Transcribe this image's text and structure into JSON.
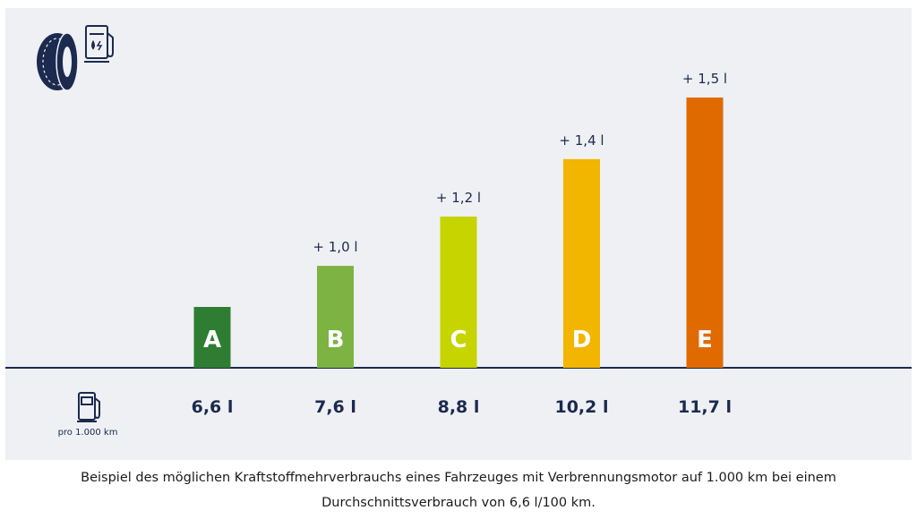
{
  "chart_data": {
    "type": "bar",
    "categories": [
      "A",
      "B",
      "C",
      "D",
      "E"
    ],
    "values": [
      6.6,
      7.6,
      8.8,
      10.2,
      11.7
    ],
    "value_labels": [
      "6,6 l",
      "7,6 l",
      "8,8 l",
      "10,2 l",
      "11,7 l"
    ],
    "delta_labels": [
      "",
      "+ 1,0 l",
      "+ 1,2 l",
      "+ 1,4 l",
      "+ 1,5 l"
    ],
    "colors": [
      "#2e7d32",
      "#7cb342",
      "#c6d400",
      "#f2b500",
      "#e06a00"
    ],
    "ylim": [
      0,
      11.7
    ],
    "grid": false,
    "legend": "none",
    "unit_note": "pro 1.000 km",
    "icons": {
      "header": [
        "tire-icon",
        "charging-pump-icon"
      ],
      "row": "fuel-pump-icon"
    }
  },
  "caption": {
    "line1": "Beispiel des möglichen Kraftstoffmehrverbrauchs eines Fahrzeuges mit Verbrennungsmotor auf 1.000 km bei einem",
    "line2": "Durchschnittsverbrauch von 6,6 l/100 km."
  },
  "colors": {
    "panel": "#eef0f4",
    "axis": "#1b2a4e",
    "text": "#1b2a4e"
  }
}
